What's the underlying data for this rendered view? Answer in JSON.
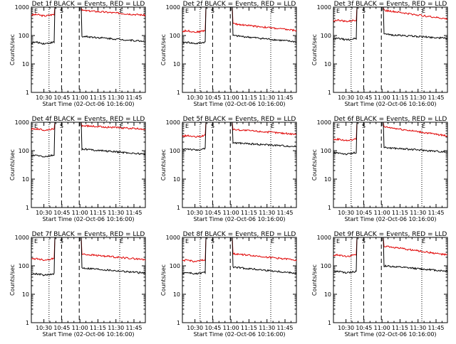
{
  "colors": {
    "events": "#000000",
    "lld": "#e00000",
    "axes": "#000000",
    "background": "#ffffff"
  },
  "markers": {
    "start": "S",
    "end": "E"
  },
  "chart_data": [
    {
      "type": "line",
      "title": "Det 1f BLACK = Events, RED = LLD",
      "xlabel": "Start Time (02-Oct-06 10:16:00)",
      "ylabel": "Counts/sec",
      "yscale": "log",
      "ylim": [
        1,
        1000
      ],
      "xticks": [
        "10:30",
        "10:45",
        "11:00",
        "11:15",
        "11:30",
        "11:45"
      ],
      "yticks": [
        "1",
        "10",
        "100",
        "1000"
      ],
      "dotted_lines": [
        0.155,
        0.775
      ],
      "dashed_lines": [
        0.265,
        0.42
      ],
      "series": [
        {
          "color": "#e00000",
          "pre": 520,
          "post": 770,
          "end": 520
        },
        {
          "color": "#000000",
          "pre": 55,
          "post": 95,
          "end": 62
        }
      ]
    },
    {
      "type": "line",
      "title": "Det 2f BLACK = Events, RED = LLD",
      "xlabel": "Start Time (02-Oct-06 10:16:00)",
      "ylabel": "Counts/sec",
      "yscale": "log",
      "ylim": [
        1,
        1000
      ],
      "xticks": [
        "10:30",
        "10:45",
        "11:00",
        "11:15",
        "11:30",
        "11:45"
      ],
      "yticks": [
        "1",
        "10",
        "100",
        "1000"
      ],
      "dotted_lines": [
        0.155,
        0.775
      ],
      "dashed_lines": [
        0.265,
        0.42
      ],
      "series": [
        {
          "color": "#e00000",
          "pre": 140,
          "post": 260,
          "end": 150
        },
        {
          "color": "#000000",
          "pre": 55,
          "post": 100,
          "end": 60
        }
      ]
    },
    {
      "type": "line",
      "title": "Det 3f BLACK = Events, RED = LLD",
      "xlabel": "Start Time (02-Oct-06 10:16:00)",
      "ylabel": "Counts/sec",
      "yscale": "log",
      "ylim": [
        1,
        1000
      ],
      "xticks": [
        "10:30",
        "10:45",
        "11:00",
        "11:15",
        "11:30",
        "11:45"
      ],
      "yticks": [
        "1",
        "10",
        "100",
        "1000"
      ],
      "dotted_lines": [
        0.155,
        0.775
      ],
      "dashed_lines": [
        0.265,
        0.42
      ],
      "series": [
        {
          "color": "#e00000",
          "pre": 330,
          "post": 780,
          "end": 380
        },
        {
          "color": "#000000",
          "pre": 75,
          "post": 110,
          "end": 80
        }
      ]
    },
    {
      "type": "line",
      "title": "Det 4f BLACK = Events, RED = LLD",
      "xlabel": "Start Time (02-Oct-06 10:16:00)",
      "ylabel": "Counts/sec",
      "yscale": "log",
      "ylim": [
        1,
        1000
      ],
      "xticks": [
        "10:30",
        "10:45",
        "11:00",
        "11:15",
        "11:30",
        "11:45"
      ],
      "yticks": [
        "1",
        "10",
        "100",
        "1000"
      ],
      "dotted_lines": [
        0.155,
        0.775
      ],
      "dashed_lines": [
        0.265,
        0.42
      ],
      "series": [
        {
          "color": "#e00000",
          "pre": 560,
          "post": 760,
          "end": 570
        },
        {
          "color": "#000000",
          "pre": 65,
          "post": 115,
          "end": 75
        }
      ]
    },
    {
      "type": "line",
      "title": "Det 5f BLACK = Events, RED = LLD",
      "xlabel": "Start Time (02-Oct-06 10:16:00)",
      "ylabel": "Counts/sec",
      "yscale": "log",
      "ylim": [
        1,
        1000
      ],
      "xticks": [
        "10:30",
        "10:45",
        "11:00",
        "11:15",
        "11:30",
        "11:45"
      ],
      "yticks": [
        "1",
        "10",
        "100",
        "1000"
      ],
      "dotted_lines": [
        0.155,
        0.775
      ],
      "dashed_lines": [
        0.265,
        0.42
      ],
      "series": [
        {
          "color": "#e00000",
          "pre": 320,
          "post": 560,
          "end": 380
        },
        {
          "color": "#000000",
          "pre": 110,
          "post": 190,
          "end": 140
        }
      ]
    },
    {
      "type": "line",
      "title": "Det 6f BLACK = Events, RED = LLD",
      "xlabel": "Start Time (02-Oct-06 10:16:00)",
      "ylabel": "Counts/sec",
      "yscale": "log",
      "ylim": [
        1,
        1000
      ],
      "xticks": [
        "10:30",
        "10:45",
        "11:00",
        "11:15",
        "11:30",
        "11:45"
      ],
      "yticks": [
        "1",
        "10",
        "100",
        "1000"
      ],
      "dotted_lines": [
        0.155,
        0.775
      ],
      "dashed_lines": [
        0.265,
        0.42
      ],
      "series": [
        {
          "color": "#e00000",
          "pre": 240,
          "post": 700,
          "end": 330
        },
        {
          "color": "#000000",
          "pre": 80,
          "post": 130,
          "end": 90
        }
      ]
    },
    {
      "type": "line",
      "title": "Det 7f BLACK = Events, RED = LLD",
      "xlabel": "Start Time (02-Oct-06 10:16:00)",
      "ylabel": "Counts/sec",
      "yscale": "log",
      "ylim": [
        1,
        1000
      ],
      "xticks": [
        "10:30",
        "10:45",
        "11:00",
        "11:15",
        "11:30",
        "11:45"
      ],
      "yticks": [
        "1",
        "10",
        "100",
        "1000"
      ],
      "dotted_lines": [
        0.155,
        0.775
      ],
      "dashed_lines": [
        0.265,
        0.42
      ],
      "series": [
        {
          "color": "#e00000",
          "pre": 170,
          "post": 260,
          "end": 165
        },
        {
          "color": "#000000",
          "pre": 50,
          "post": 85,
          "end": 55
        }
      ]
    },
    {
      "type": "line",
      "title": "Det 8f BLACK = Events, RED = LLD",
      "xlabel": "Start Time (02-Oct-06 10:16:00)",
      "ylabel": "Counts/sec",
      "yscale": "log",
      "ylim": [
        1,
        1000
      ],
      "xticks": [
        "10:30",
        "10:45",
        "11:00",
        "11:15",
        "11:30",
        "11:45"
      ],
      "yticks": [
        "1",
        "10",
        "100",
        "1000"
      ],
      "dotted_lines": [
        0.155,
        0.775
      ],
      "dashed_lines": [
        0.265,
        0.42
      ],
      "series": [
        {
          "color": "#e00000",
          "pre": 150,
          "post": 270,
          "end": 160
        },
        {
          "color": "#000000",
          "pre": 55,
          "post": 90,
          "end": 55
        }
      ]
    },
    {
      "type": "line",
      "title": "Det 9f BLACK = Events, RED = LLD",
      "xlabel": "Start Time (02-Oct-06 10:16:00)",
      "ylabel": "Counts/sec",
      "yscale": "log",
      "ylim": [
        1,
        1000
      ],
      "xticks": [
        "10:30",
        "10:45",
        "11:00",
        "11:15",
        "11:30",
        "11:45"
      ],
      "yticks": [
        "1",
        "10",
        "100",
        "1000"
      ],
      "dotted_lines": [
        0.155,
        0.775
      ],
      "dashed_lines": [
        0.265,
        0.42
      ],
      "series": [
        {
          "color": "#e00000",
          "pre": 230,
          "post": 500,
          "end": 240
        },
        {
          "color": "#000000",
          "pre": 60,
          "post": 100,
          "end": 65
        }
      ]
    }
  ]
}
